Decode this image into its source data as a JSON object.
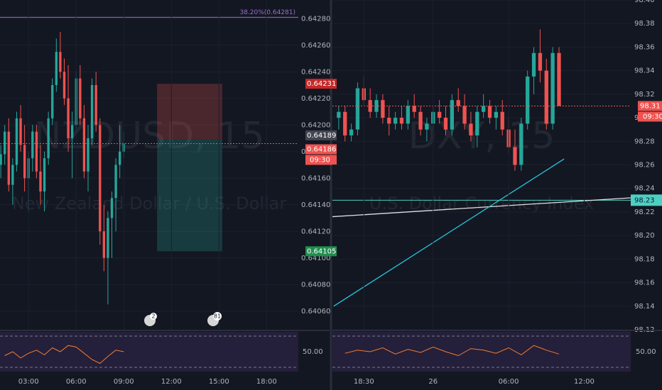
{
  "chart_data": [
    {
      "type": "candlestick",
      "watermark": "NZDUSD, 15",
      "watermark_subtitle": "New Zealand Dollar / U.S. Dollar",
      "xlim": [
        1.2,
        20.0
      ],
      "ylim": [
        0.64046,
        0.64294
      ],
      "yticks": [
        {
          "value": 0.6406,
          "label": "0.64060"
        },
        {
          "value": 0.6408,
          "label": "0.64080"
        },
        {
          "value": 0.641,
          "label": "0.64100"
        },
        {
          "value": 0.6412,
          "label": "0.64120"
        },
        {
          "value": 0.6414,
          "label": "0.64140"
        },
        {
          "value": 0.6416,
          "label": "0.64160"
        },
        {
          "value": 0.6418,
          "label": "0.64180"
        },
        {
          "value": 0.642,
          "label": "0.64200"
        },
        {
          "value": 0.6422,
          "label": "0.64220"
        },
        {
          "value": 0.6424,
          "label": "0.64240"
        },
        {
          "value": 0.6426,
          "label": "0.64260"
        },
        {
          "value": 0.6428,
          "label": "0.64280"
        }
      ],
      "xticks": [
        {
          "value": 3,
          "label": "03:00"
        },
        {
          "value": 6,
          "label": "06:00"
        },
        {
          "value": 9,
          "label": "09:00"
        },
        {
          "value": 12,
          "label": "12:00"
        },
        {
          "value": 15,
          "label": "15:00"
        },
        {
          "value": 18,
          "label": "18:00"
        }
      ],
      "up_color": "#26a69a",
      "down_color": "#ef5350",
      "x": [
        1.25,
        1.5,
        1.75,
        2,
        2.25,
        2.5,
        2.75,
        3,
        3.25,
        3.5,
        3.75,
        4,
        4.25,
        4.5,
        4.75,
        5,
        5.25,
        5.5,
        5.75,
        6,
        6.25,
        6.5,
        6.75,
        7,
        7.25,
        7.5,
        7.75,
        8,
        8.25,
        8.5,
        8.75,
        9
      ],
      "open": [
        0.6417,
        0.64178,
        0.64195,
        0.64155,
        0.6417,
        0.64205,
        0.64185,
        0.6416,
        0.64175,
        0.64195,
        0.64165,
        0.6415,
        0.64175,
        0.64205,
        0.6423,
        0.64255,
        0.6424,
        0.6422,
        0.6419,
        0.642,
        0.64235,
        0.64205,
        0.64165,
        0.6419,
        0.6423,
        0.642,
        0.6412,
        0.641,
        0.6413,
        0.64145,
        0.6417,
        0.6418
      ],
      "high": [
        0.64185,
        0.642,
        0.64205,
        0.64175,
        0.6421,
        0.64215,
        0.642,
        0.6418,
        0.642,
        0.642,
        0.64185,
        0.6418,
        0.6421,
        0.64235,
        0.64265,
        0.6427,
        0.6425,
        0.64245,
        0.6421,
        0.6424,
        0.64245,
        0.64215,
        0.642,
        0.64235,
        0.6424,
        0.64205,
        0.6414,
        0.64135,
        0.6415,
        0.64175,
        0.642,
        0.64195
      ],
      "low": [
        0.6416,
        0.6417,
        0.6415,
        0.6414,
        0.64165,
        0.6418,
        0.6415,
        0.64135,
        0.64165,
        0.6416,
        0.6414,
        0.64135,
        0.6417,
        0.642,
        0.64225,
        0.64235,
        0.64215,
        0.6418,
        0.6416,
        0.64195,
        0.642,
        0.6416,
        0.6415,
        0.64185,
        0.64195,
        0.6411,
        0.6409,
        0.64065,
        0.641,
        0.6412,
        0.6416,
        0.64175
      ],
      "close": [
        0.64178,
        0.64195,
        0.64155,
        0.6417,
        0.64205,
        0.64185,
        0.6416,
        0.64175,
        0.64195,
        0.64165,
        0.6415,
        0.64175,
        0.64205,
        0.6423,
        0.64255,
        0.6424,
        0.6422,
        0.6419,
        0.642,
        0.64235,
        0.64205,
        0.64165,
        0.6419,
        0.6423,
        0.642,
        0.6412,
        0.641,
        0.6413,
        0.64145,
        0.6417,
        0.6418,
        0.64186
      ],
      "fib": {
        "label": "38.20%(0.64281)",
        "value": 0.64281,
        "color": "#9c6fc8"
      },
      "position": {
        "start": 11.1,
        "end": 15.2,
        "entry": 0.64189,
        "stop": 0.64231,
        "target": 0.64105
      },
      "last_price": {
        "value": 0.64186,
        "countdown": "09:30"
      },
      "events": [
        "2",
        "81"
      ],
      "rsi": {
        "x": [
          1.5,
          2,
          2.5,
          3,
          3.5,
          4,
          4.5,
          5,
          5.5,
          6,
          6.5,
          7,
          7.5,
          8,
          8.5,
          9
        ],
        "values": [
          45,
          50,
          42,
          48,
          52,
          46,
          55,
          50,
          58,
          56,
          48,
          40,
          35,
          44,
          52,
          50
        ],
        "ylim": [
          30,
          70
        ],
        "yticks": [
          {
            "value": 50,
            "label": "50.00"
          }
        ],
        "color": "#f57c2e"
      }
    },
    {
      "type": "candlestick",
      "watermark": "DXY, 15",
      "watermark_subtitle": "U.S. Dollar Currency Index",
      "xlim": [
        16,
        39.7
      ],
      "ylim": [
        98.12,
        98.4
      ],
      "yticks": [
        98.12,
        98.14,
        98.16,
        98.18,
        {
          "value": 98.2,
          "label": "98.20"
        },
        98.22,
        98.24,
        98.26,
        98.28,
        {
          "value": 98.3,
          "label": "98.30"
        },
        98.32,
        98.34,
        98.36,
        98.38,
        {
          "value": 98.4,
          "label": "98.40"
        }
      ],
      "xticks": [
        {
          "value": 18.5,
          "label": "18:30"
        },
        {
          "value": 24,
          "label": "26"
        },
        {
          "value": 30,
          "label": "06:00"
        },
        {
          "value": 36,
          "label": "12:00"
        }
      ],
      "up_color": "#26a69a",
      "down_color": "#ef5350",
      "x": [
        16.5,
        17,
        17.5,
        18,
        18.5,
        19,
        19.5,
        20,
        20.5,
        21,
        21.5,
        22,
        22.5,
        23,
        23.5,
        24,
        24.5,
        25,
        25.5,
        26,
        26.5,
        27,
        27.5,
        28,
        28.5,
        29,
        29.5,
        30,
        30.5,
        31,
        31.5,
        32,
        32.5,
        33,
        33.5,
        34
      ],
      "open": [
        98.3,
        98.305,
        98.285,
        98.29,
        98.325,
        98.315,
        98.305,
        98.315,
        98.3,
        98.295,
        98.3,
        98.295,
        98.31,
        98.305,
        98.29,
        98.295,
        98.305,
        98.3,
        98.29,
        98.315,
        98.31,
        98.295,
        98.285,
        98.305,
        98.31,
        98.3,
        98.305,
        98.29,
        98.275,
        98.26,
        98.295,
        98.335,
        98.355,
        98.34,
        98.295,
        98.355
      ],
      "high": [
        98.31,
        98.31,
        98.295,
        98.33,
        98.335,
        98.325,
        98.32,
        98.32,
        98.31,
        98.305,
        98.31,
        98.315,
        98.32,
        98.31,
        98.3,
        98.31,
        98.315,
        98.31,
        98.32,
        98.325,
        98.32,
        98.305,
        98.31,
        98.32,
        98.315,
        98.31,
        98.315,
        98.3,
        98.29,
        98.3,
        98.34,
        98.36,
        98.375,
        98.35,
        98.36,
        98.36
      ],
      "low": [
        98.29,
        98.28,
        98.28,
        98.285,
        98.31,
        98.3,
        98.3,
        98.295,
        98.285,
        98.29,
        98.29,
        98.29,
        98.3,
        98.285,
        98.28,
        98.29,
        98.295,
        98.285,
        98.285,
        98.305,
        98.29,
        98.28,
        98.275,
        98.3,
        98.295,
        98.29,
        98.285,
        98.27,
        98.255,
        98.255,
        98.29,
        98.32,
        98.33,
        98.29,
        98.29,
        98.31
      ],
      "close": [
        98.305,
        98.285,
        98.29,
        98.325,
        98.315,
        98.305,
        98.315,
        98.3,
        98.295,
        98.3,
        98.295,
        98.31,
        98.305,
        98.29,
        98.295,
        98.305,
        98.3,
        98.29,
        98.315,
        98.31,
        98.295,
        98.285,
        98.305,
        98.31,
        98.3,
        98.305,
        98.29,
        98.275,
        98.26,
        98.295,
        98.335,
        98.355,
        98.34,
        98.295,
        98.355,
        98.31
      ],
      "horizontal_line": {
        "value": 98.23,
        "color": "#4dd0c4"
      },
      "trendlines": [
        {
          "color": "#e0e0e0",
          "points": [
            [
              16,
              98.216
            ],
            [
              39.7,
              98.232
            ]
          ]
        },
        {
          "color": "#26c6da",
          "points": [
            [
              16.1,
              98.14
            ],
            [
              34.4,
              98.265
            ]
          ]
        }
      ],
      "last_price": {
        "value": 98.31,
        "countdown": "09:30"
      },
      "rsi": {
        "x": [
          17,
          18,
          19,
          20,
          21,
          22,
          23,
          24,
          25,
          26,
          27,
          28,
          29,
          30,
          31,
          32,
          33,
          34
        ],
        "values": [
          48,
          52,
          50,
          55,
          47,
          53,
          49,
          56,
          50,
          45,
          54,
          52,
          48,
          55,
          46,
          58,
          52,
          47
        ],
        "ylim": [
          30,
          70
        ],
        "yticks": [
          {
            "value": 50,
            "label": "50.00"
          }
        ],
        "color": "#f57c2e"
      }
    }
  ]
}
